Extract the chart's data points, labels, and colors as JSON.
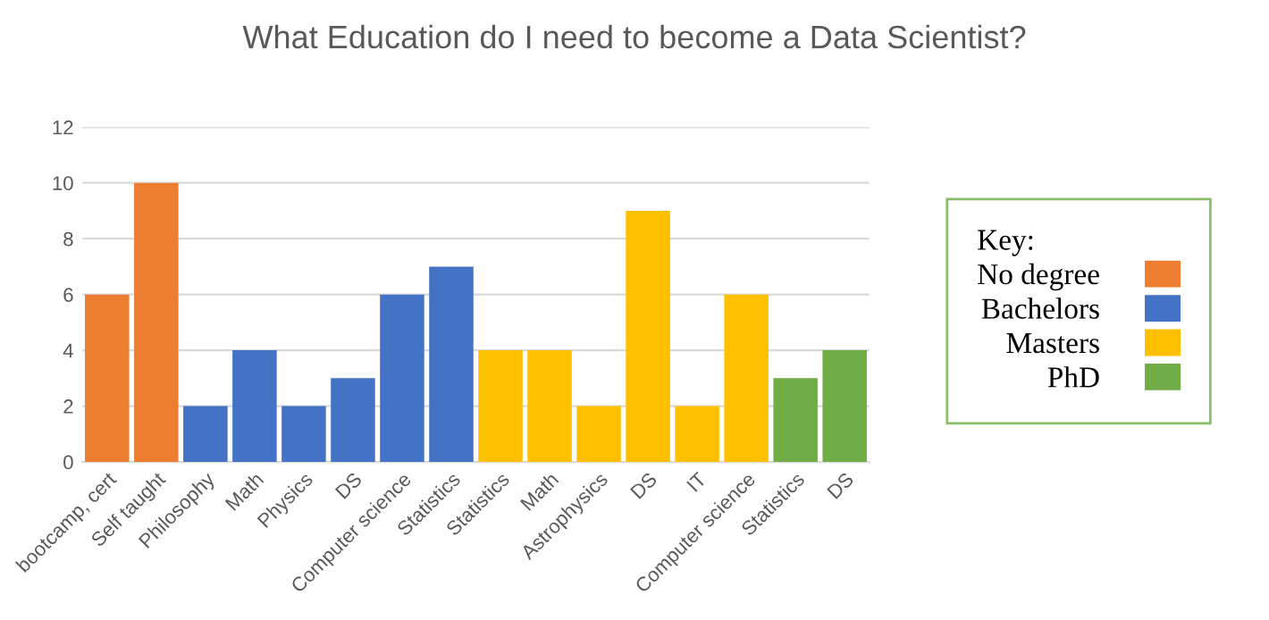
{
  "chart_data": {
    "type": "bar",
    "title": "What Education do I need to become a Data Scientist?",
    "categories": [
      "bootcamp, cert",
      "Self taught",
      "Philosophy",
      "Math",
      "Physics",
      "DS",
      "Computer science",
      "Statistics",
      "Statistics",
      "Math",
      "Astrophysics",
      "DS",
      "IT",
      "Computer science",
      "Statistics",
      "DS"
    ],
    "series": [
      {
        "name": "No degree",
        "color": "#ed7d31",
        "values": [
          6,
          10,
          null,
          null,
          null,
          null,
          null,
          null,
          null,
          null,
          null,
          null,
          null,
          null,
          null,
          null
        ]
      },
      {
        "name": "Bachelors",
        "color": "#4472c4",
        "values": [
          null,
          null,
          2,
          4,
          2,
          3,
          6,
          7,
          null,
          null,
          null,
          null,
          null,
          null,
          null,
          null
        ]
      },
      {
        "name": "Masters",
        "color": "#ffc000",
        "values": [
          null,
          null,
          null,
          null,
          null,
          null,
          null,
          null,
          4,
          4,
          2,
          9,
          2,
          6,
          null,
          null
        ]
      },
      {
        "name": "PhD",
        "color": "#70ad47",
        "values": [
          null,
          null,
          null,
          null,
          null,
          null,
          null,
          null,
          null,
          null,
          null,
          null,
          null,
          null,
          3,
          4
        ]
      }
    ],
    "legend_title": "Key:",
    "legend": "right",
    "ylim": [
      0,
      12
    ],
    "yticks": [
      0,
      2,
      4,
      6,
      8,
      10,
      12
    ],
    "grid": "y"
  }
}
